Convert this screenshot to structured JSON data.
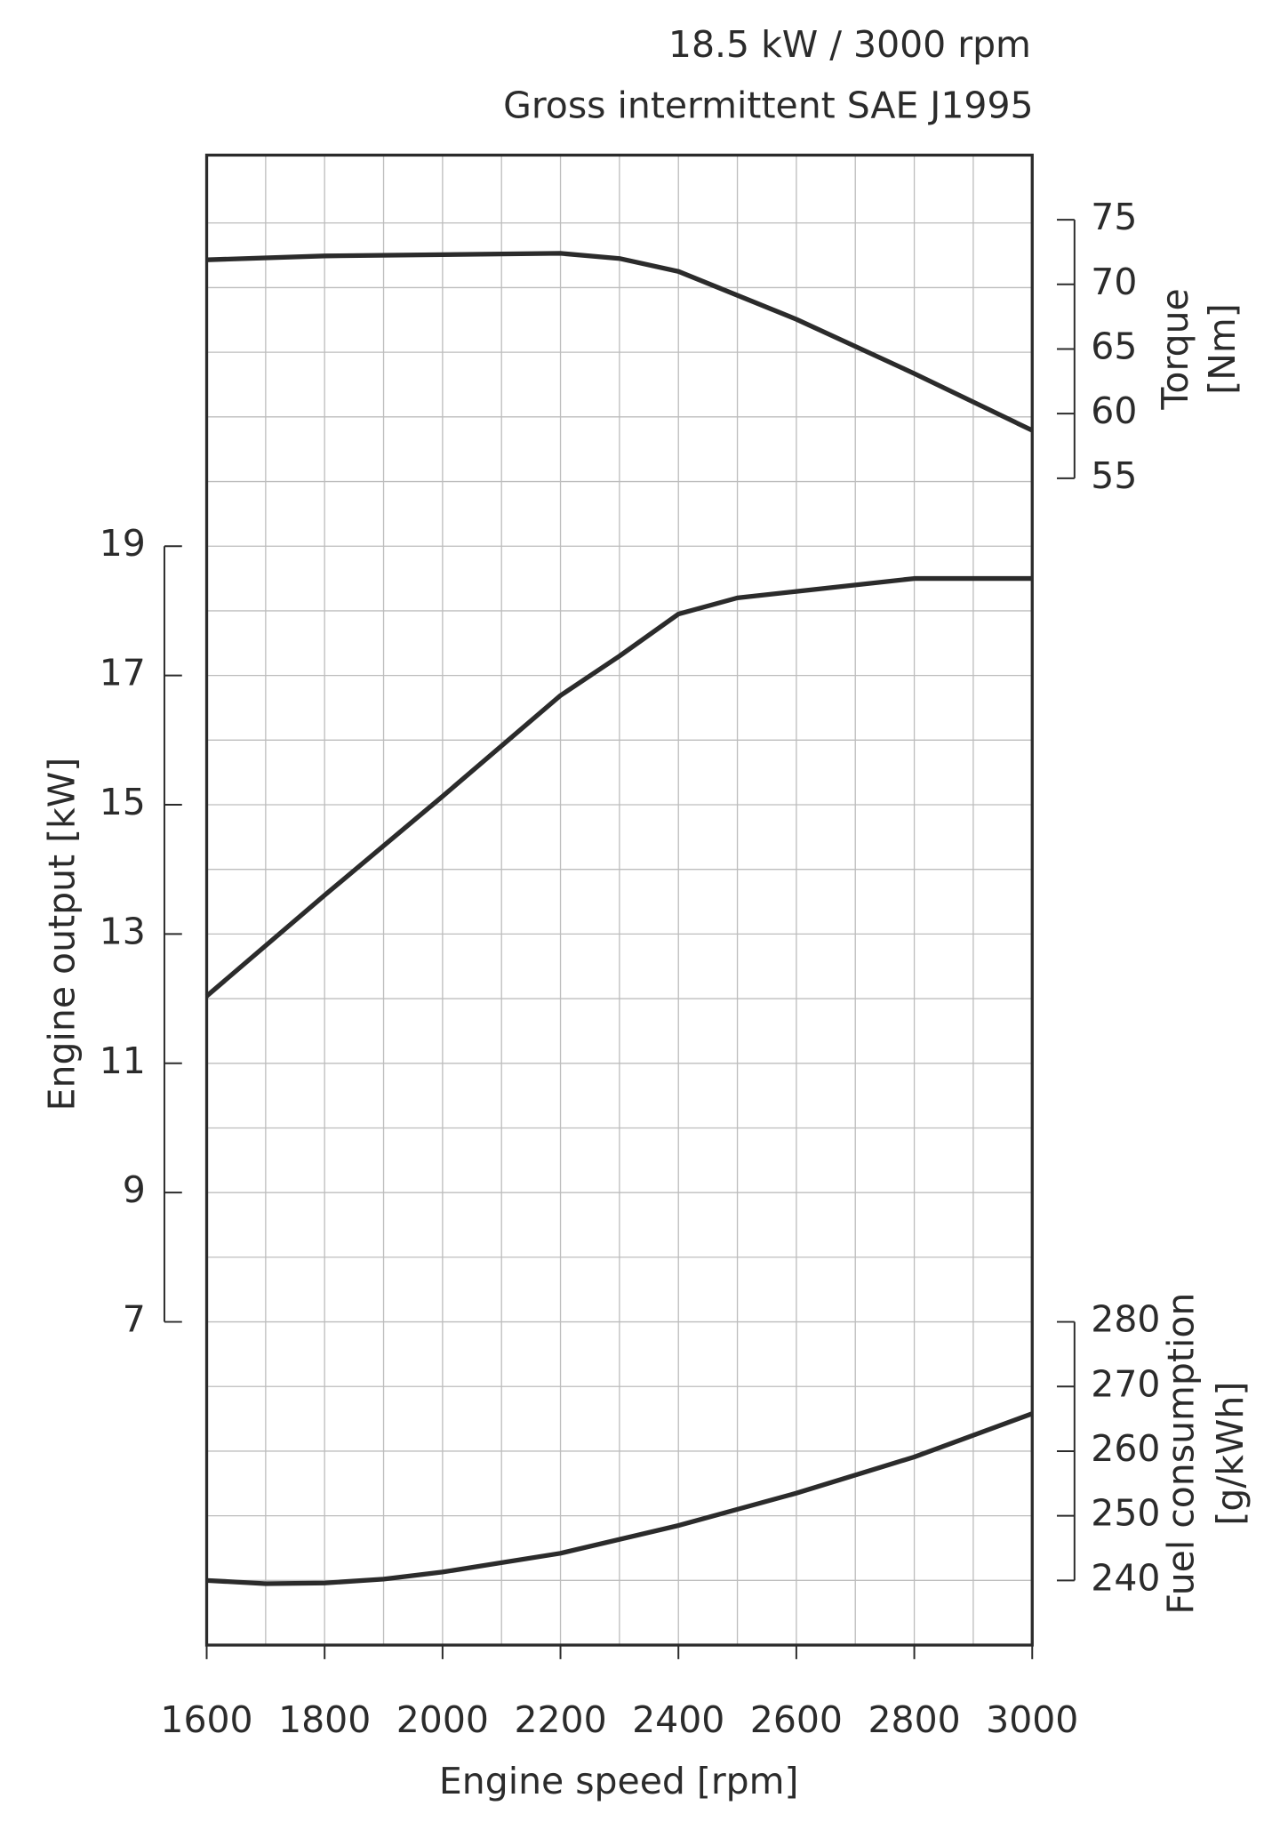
{
  "chart_data": {
    "type": "line",
    "title": [
      "18.5 kW / 3000 rpm",
      "Gross intermittent SAE J1995"
    ],
    "xlabel": "Engine speed [rpm]",
    "ylabel": "Engine output [kW]",
    "y2label": [
      "Torque",
      "[Nm]"
    ],
    "y3label": [
      "Fuel consumption",
      "[g/kWh]"
    ],
    "xlim": [
      1600,
      3000
    ],
    "xticks": [
      1600,
      1800,
      2000,
      2200,
      2400,
      2600,
      2800,
      3000
    ],
    "xgrid": [
      1700,
      1800,
      1900,
      2000,
      2100,
      2200,
      2300,
      2400,
      2500,
      2600,
      2700,
      2800,
      2900
    ],
    "ylim": [
      2,
      25.05
    ],
    "yticks": [
      7,
      9,
      11,
      13,
      15,
      17,
      19
    ],
    "ygrid": [
      3,
      4,
      5,
      6,
      7,
      8,
      9,
      10,
      11,
      12,
      13,
      14,
      15,
      16,
      17,
      18,
      19,
      20,
      21,
      22,
      23,
      24
    ],
    "y2lim": [
      -35.27,
      80
    ],
    "y2ticks": [
      55,
      60,
      65,
      70,
      75
    ],
    "y3lim": [
      230,
      460.5
    ],
    "y3ticks": [
      240,
      250,
      260,
      270,
      280
    ],
    "grid": true,
    "series": [
      {
        "name": "Engine output",
        "color": "#2b2b2b",
        "axis": "y",
        "x": [
          1600,
          1800,
          2000,
          2200,
          2300,
          2400,
          2500,
          2600,
          2800,
          3000
        ],
        "values": [
          12.04,
          13.6,
          15.13,
          16.69,
          17.3,
          17.95,
          18.2,
          18.3,
          18.5,
          18.5
        ]
      },
      {
        "name": "Torque",
        "color": "#2b2b2b",
        "axis": "y2",
        "x": [
          1600,
          1800,
          2000,
          2200,
          2300,
          2400,
          2600,
          2800,
          3000
        ],
        "values": [
          71.9,
          72.2,
          72.3,
          72.4,
          72.0,
          71.0,
          67.3,
          63.1,
          58.7
        ]
      },
      {
        "name": "Fuel consumption",
        "color": "#2b2b2b",
        "axis": "y3",
        "x": [
          1600,
          1700,
          1800,
          1900,
          2000,
          2200,
          2400,
          2600,
          2800,
          3000
        ],
        "values": [
          240,
          239.5,
          239.6,
          240.2,
          241.3,
          244.2,
          248.5,
          253.5,
          259.1,
          265.8
        ]
      }
    ]
  }
}
